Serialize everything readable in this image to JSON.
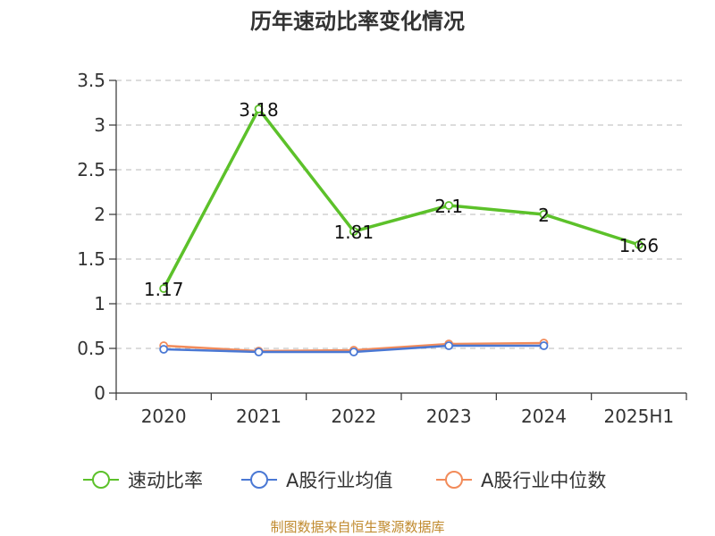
{
  "chart_data": {
    "type": "line",
    "title": "历年速动比率变化情况",
    "categories": [
      "2020",
      "2021",
      "2022",
      "2023",
      "2024",
      "2025H1"
    ],
    "ylim": [
      0,
      3.5
    ],
    "yticks": [
      "0",
      "0.5",
      "1",
      "1.5",
      "2",
      "2.5",
      "3",
      "3.5"
    ],
    "grid": true,
    "legend_position": "bottom",
    "series": [
      {
        "name": "速动比率",
        "color": "#5cc12a",
        "values": [
          1.17,
          3.18,
          1.81,
          2.1,
          2,
          1.66
        ],
        "labels": [
          "1.17",
          "3.18",
          "1.81",
          "2.1",
          "2",
          "1.66"
        ]
      },
      {
        "name": "A股行业均值",
        "color": "#4a78d4",
        "values": [
          0.49,
          0.46,
          0.46,
          0.53,
          0.53,
          null
        ]
      },
      {
        "name": "A股行业中位数",
        "color": "#f28b5a",
        "values": [
          0.53,
          0.47,
          0.48,
          0.55,
          0.56,
          null
        ]
      }
    ]
  },
  "source": "制图数据来自恒生聚源数据库"
}
